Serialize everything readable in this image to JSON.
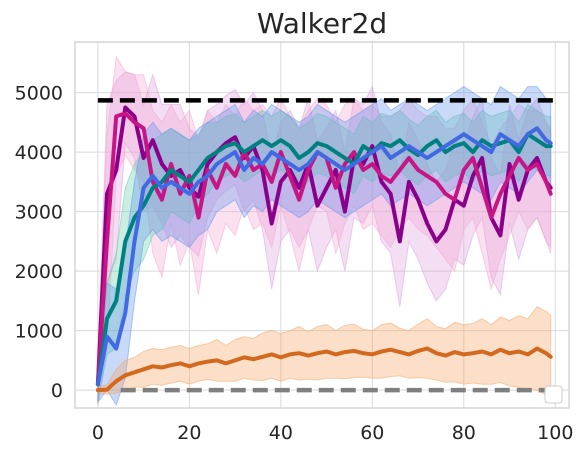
{
  "chart_data": {
    "type": "line",
    "title": "Walker2d",
    "xlabel": "",
    "ylabel": "",
    "xlim": [
      -5,
      103
    ],
    "ylim": [
      -300,
      5850
    ],
    "x_ticks": [
      0,
      20,
      40,
      60,
      80,
      100
    ],
    "y_ticks": [
      0,
      1000,
      2000,
      3000,
      4000,
      5000
    ],
    "grid": true,
    "legend": "lower-right, empty",
    "reference_lines": [
      {
        "y": 4870,
        "x_range": [
          0,
          100
        ],
        "color": "#000000",
        "style": "dashed"
      },
      {
        "y": 0,
        "x_range": [
          5,
          100
        ],
        "color": "#7f7f7f",
        "style": "dashed"
      }
    ],
    "series": [
      {
        "color": "#8b008b",
        "band_color": "#dda0dd",
        "x": [
          0,
          2,
          4,
          6,
          8,
          10,
          12,
          14,
          16,
          18,
          20,
          22,
          24,
          26,
          28,
          30,
          32,
          34,
          36,
          38,
          40,
          42,
          44,
          46,
          48,
          50,
          52,
          54,
          56,
          58,
          60,
          62,
          64,
          66,
          68,
          70,
          72,
          74,
          76,
          78,
          80,
          82,
          84,
          86,
          88,
          90,
          92,
          94,
          96,
          98,
          99
        ],
        "y": [
          100,
          3300,
          3700,
          4750,
          4600,
          3900,
          4200,
          3800,
          3600,
          3700,
          3400,
          3250,
          3800,
          4000,
          4150,
          4250,
          3900,
          4100,
          3700,
          2800,
          3500,
          3700,
          3400,
          3800,
          3100,
          3400,
          3700,
          3000,
          3900,
          3800,
          4100,
          3500,
          3300,
          2500,
          3500,
          3200,
          2800,
          2500,
          2700,
          3200,
          3100,
          3600,
          3900,
          2900,
          2600,
          3800,
          3200,
          3700,
          3900,
          3500,
          3400
        ],
        "band": [
          400,
          1500,
          1500,
          600,
          700,
          900,
          1100,
          1000,
          1200,
          1100,
          1000,
          1000,
          900,
          800,
          800,
          800,
          900,
          900,
          1000,
          1100,
          1000,
          1000,
          1000,
          1100,
          1100,
          1000,
          1000,
          1000,
          1000,
          1000,
          1000,
          1000,
          1000,
          1100,
          1000,
          1000,
          1000,
          1000,
          1000,
          1000,
          1000,
          1000,
          1000,
          1000,
          1000,
          1000,
          1000,
          1000,
          1000,
          1000,
          1000
        ]
      },
      {
        "color": "#c71585",
        "band_color": "#f4a7d3",
        "x": [
          0,
          2,
          4,
          6,
          8,
          10,
          12,
          14,
          16,
          18,
          20,
          22,
          24,
          26,
          28,
          30,
          32,
          34,
          36,
          38,
          40,
          42,
          44,
          46,
          48,
          50,
          52,
          54,
          56,
          58,
          60,
          62,
          64,
          66,
          68,
          70,
          72,
          74,
          76,
          78,
          80,
          82,
          84,
          86,
          88,
          90,
          92,
          94,
          96,
          98,
          99
        ],
        "y": [
          100,
          2500,
          4600,
          4650,
          4500,
          4400,
          3500,
          3200,
          3800,
          3300,
          3600,
          2900,
          3700,
          3400,
          3800,
          3600,
          4000,
          3700,
          3800,
          3500,
          4000,
          3600,
          3200,
          3700,
          4000,
          3900,
          3400,
          3800,
          4000,
          3700,
          3800,
          3600,
          3500,
          3700,
          3900,
          3700,
          3600,
          3500,
          3300,
          3200,
          3700,
          3900,
          3400,
          2900,
          3300,
          3600,
          3900,
          3700,
          3800,
          3500,
          3300
        ],
        "band": [
          400,
          1800,
          1000,
          700,
          800,
          900,
          1200,
          1300,
          1000,
          1200,
          1100,
          1300,
          1000,
          1100,
          1000,
          1000,
          900,
          1000,
          1000,
          1100,
          900,
          1000,
          1200,
          1000,
          900,
          900,
          1100,
          1000,
          900,
          1000,
          1000,
          1000,
          1100,
          1000,
          1000,
          1000,
          1000,
          1100,
          1100,
          1200,
          1000,
          1000,
          1100,
          1200,
          1100,
          1000,
          900,
          1000,
          900,
          1000,
          1000
        ]
      },
      {
        "color": "#008080",
        "band_color": "#66cdaa",
        "x": [
          0,
          2,
          4,
          6,
          8,
          10,
          12,
          14,
          16,
          18,
          20,
          22,
          24,
          26,
          28,
          30,
          32,
          34,
          36,
          38,
          40,
          42,
          44,
          46,
          48,
          50,
          52,
          54,
          56,
          58,
          60,
          62,
          64,
          66,
          68,
          70,
          72,
          74,
          76,
          78,
          80,
          82,
          84,
          86,
          88,
          90,
          92,
          94,
          96,
          98,
          99
        ],
        "y": [
          100,
          1200,
          1500,
          2500,
          2900,
          3100,
          3400,
          3500,
          3700,
          3600,
          3500,
          3700,
          3900,
          4000,
          4100,
          4150,
          4000,
          4100,
          4200,
          4100,
          4200,
          4100,
          3900,
          4000,
          4150,
          4100,
          4000,
          3900,
          3800,
          4100,
          4000,
          4150,
          4100,
          4200,
          4050,
          3950,
          4100,
          4200,
          4000,
          4100,
          4150,
          4000,
          4200,
          4100,
          4150,
          4200,
          4000,
          4300,
          4200,
          4100,
          4100
        ],
        "band": [
          300,
          600,
          800,
          900,
          900,
          900,
          800,
          800,
          700,
          700,
          700,
          600,
          600,
          500,
          500,
          500,
          500,
          500,
          500,
          500,
          500,
          500,
          500,
          500,
          500,
          500,
          500,
          500,
          500,
          500,
          500,
          500,
          500,
          500,
          500,
          500,
          500,
          500,
          500,
          500,
          500,
          500,
          500,
          500,
          500,
          500,
          500,
          500,
          500,
          500,
          500
        ]
      },
      {
        "color": "#4169e1",
        "band_color": "#6495ed",
        "x": [
          0,
          2,
          4,
          6,
          8,
          10,
          12,
          14,
          16,
          18,
          20,
          22,
          24,
          26,
          28,
          30,
          32,
          34,
          36,
          38,
          40,
          42,
          44,
          46,
          48,
          50,
          52,
          54,
          56,
          58,
          60,
          62,
          64,
          66,
          68,
          70,
          72,
          74,
          76,
          78,
          80,
          82,
          84,
          86,
          88,
          90,
          92,
          94,
          96,
          98,
          99
        ],
        "y": [
          100,
          900,
          700,
          1300,
          2500,
          3400,
          3600,
          3400,
          3500,
          3400,
          3300,
          3500,
          3600,
          3800,
          3900,
          4000,
          3700,
          3900,
          3800,
          4000,
          3900,
          3800,
          3700,
          3800,
          4000,
          3900,
          3800,
          3700,
          3800,
          3900,
          4000,
          4100,
          3900,
          4000,
          4100,
          4000,
          3900,
          4000,
          4100,
          4200,
          4300,
          4200,
          4100,
          4000,
          4300,
          4200,
          4100,
          4300,
          4400,
          4200,
          4150
        ],
        "band": [
          300,
          900,
          1000,
          1100,
          1000,
          900,
          900,
          900,
          900,
          900,
          900,
          900,
          900,
          800,
          800,
          800,
          800,
          800,
          800,
          800,
          800,
          800,
          800,
          800,
          800,
          800,
          800,
          800,
          800,
          800,
          800,
          800,
          800,
          800,
          800,
          800,
          800,
          800,
          800,
          800,
          800,
          800,
          800,
          800,
          800,
          800,
          800,
          800,
          700,
          700,
          700
        ]
      },
      {
        "color": "#d2691e",
        "band_color": "#f4a460",
        "x": [
          0,
          2,
          4,
          6,
          8,
          10,
          12,
          14,
          16,
          18,
          20,
          22,
          24,
          26,
          28,
          30,
          32,
          34,
          36,
          38,
          40,
          42,
          44,
          46,
          48,
          50,
          52,
          54,
          56,
          58,
          60,
          62,
          64,
          66,
          68,
          70,
          72,
          74,
          76,
          78,
          80,
          82,
          84,
          86,
          88,
          90,
          92,
          94,
          96,
          98,
          99
        ],
        "y": [
          0,
          10,
          150,
          250,
          300,
          350,
          400,
          380,
          420,
          450,
          400,
          450,
          480,
          500,
          450,
          500,
          550,
          520,
          560,
          600,
          550,
          600,
          620,
          580,
          620,
          650,
          600,
          640,
          660,
          620,
          600,
          650,
          680,
          640,
          600,
          660,
          700,
          620,
          580,
          640,
          600,
          620,
          650,
          600,
          680,
          620,
          650,
          600,
          700,
          620,
          560
        ],
        "band": [
          50,
          80,
          200,
          250,
          250,
          300,
          300,
          300,
          300,
          300,
          300,
          300,
          300,
          350,
          300,
          350,
          350,
          350,
          400,
          400,
          400,
          400,
          450,
          400,
          450,
          450,
          400,
          450,
          450,
          400,
          400,
          450,
          450,
          400,
          400,
          450,
          500,
          450,
          450,
          500,
          500,
          500,
          550,
          500,
          550,
          550,
          600,
          600,
          700,
          700,
          700
        ]
      }
    ]
  }
}
